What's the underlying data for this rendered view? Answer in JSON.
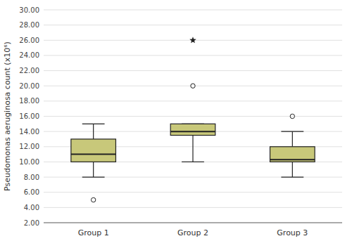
{
  "chart_data": {
    "type": "box",
    "ylabel": "Pseudomonas aeruginosa count (x10⁶)",
    "categories": [
      "Group 1",
      "Group 2",
      "Group 3"
    ],
    "whislo": [
      8.0,
      10.0,
      8.0
    ],
    "q1": [
      10.0,
      13.5,
      10.0
    ],
    "med": [
      11.0,
      14.0,
      10.3
    ],
    "q3": [
      13.0,
      15.0,
      12.0
    ],
    "whishi": [
      15.0,
      15.0,
      14.0
    ],
    "outliers": [
      [
        5.0
      ],
      [
        20.0
      ],
      [
        16.0
      ]
    ],
    "extreme_outliers": [
      [],
      [
        26.0
      ],
      []
    ],
    "color": "#c8c87a",
    "ylim": [
      2.0,
      30.0
    ],
    "yticks": [
      {
        "value": 2.0,
        "label": "2.00"
      },
      {
        "value": 4.0,
        "label": "4.00"
      },
      {
        "value": 6.0,
        "label": "6.00"
      },
      {
        "value": 8.0,
        "label": "8.00"
      },
      {
        "value": 10.0,
        "label": "10.00"
      },
      {
        "value": 12.0,
        "label": "12.00"
      },
      {
        "value": 14.0,
        "label": "14.00"
      },
      {
        "value": 16.0,
        "label": "16.00"
      },
      {
        "value": 18.0,
        "label": "18.00"
      },
      {
        "value": 20.0,
        "label": "20.00"
      },
      {
        "value": 22.0,
        "label": "22.00"
      },
      {
        "value": 24.0,
        "label": "24.00"
      },
      {
        "value": 26.0,
        "label": "26.00"
      },
      {
        "value": 28.0,
        "label": "28.00"
      },
      {
        "value": 30.0,
        "label": "30.00"
      }
    ],
    "grid": true
  }
}
